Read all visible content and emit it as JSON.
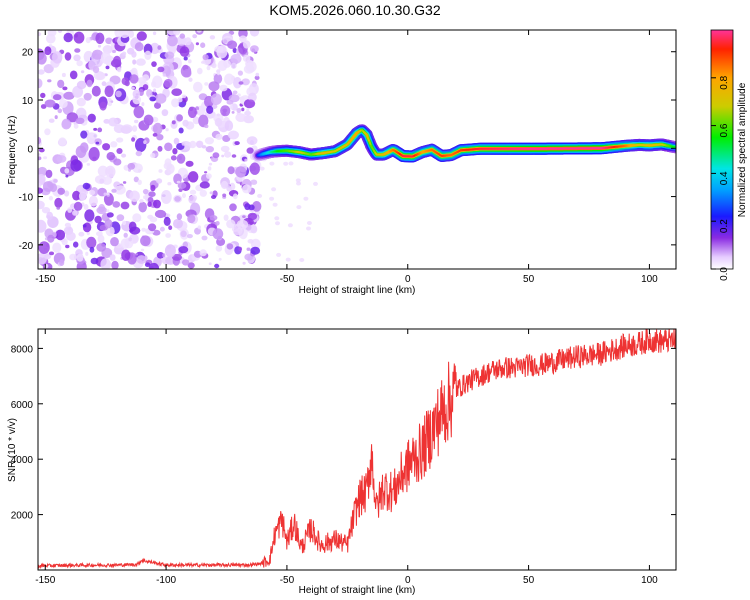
{
  "title": "KOM5.2026.060.10.30.G32",
  "chart_data": [
    {
      "type": "heatmap",
      "panel": "spectrogram",
      "xlabel": "Height of straight line (km)",
      "ylabel": "Frequency (Hz)",
      "xlim": [
        -153,
        111
      ],
      "ylim": [
        -25,
        24.5
      ],
      "xticks": [
        -150,
        -100,
        -50,
        0,
        50,
        100
      ],
      "yticks": [
        -20,
        -10,
        0,
        10,
        20
      ],
      "noise_region_x": [
        -153,
        -62
      ],
      "ridge": {
        "x": [
          -62,
          -60,
          -57,
          -54,
          -50,
          -45,
          -40,
          -35,
          -30,
          -25,
          -21,
          -19,
          -17,
          -15,
          -13,
          -10,
          -6,
          -2,
          2,
          6,
          10,
          14,
          18,
          22,
          30,
          50,
          80,
          90,
          96,
          100,
          105,
          111
        ],
        "freq": [
          -1.5,
          -1.2,
          -0.8,
          -0.6,
          -0.5,
          -0.8,
          -1.3,
          -1.0,
          -0.6,
          0.8,
          3.2,
          3.8,
          2.8,
          0.3,
          -1.3,
          -1.3,
          -0.3,
          -1.6,
          -1.7,
          -0.8,
          -0.3,
          -1.6,
          -1.4,
          -0.4,
          -0.1,
          -0.1,
          0.0,
          0.5,
          0.7,
          0.6,
          0.8,
          0.2
        ],
        "amp": [
          0.25,
          0.35,
          0.45,
          0.55,
          0.6,
          0.7,
          0.6,
          0.75,
          0.7,
          0.75,
          0.8,
          0.65,
          0.75,
          0.6,
          0.7,
          0.75,
          0.85,
          0.95,
          0.95,
          0.8,
          0.85,
          0.9,
          0.85,
          0.9,
          0.95,
          1.0,
          1.0,
          0.85,
          0.7,
          0.75,
          0.7,
          0.5
        ]
      },
      "colorbar": {
        "label": "Normalized spectral amplitude",
        "ticks": [
          0.0,
          0.2,
          0.4,
          0.6,
          0.8
        ],
        "range": [
          0,
          1
        ]
      }
    },
    {
      "type": "line",
      "panel": "snr",
      "xlabel": "Height of straight line (km)",
      "ylabel": "SNR (10 * v/v)",
      "xlim": [
        -153,
        111
      ],
      "ylim": [
        0,
        8700
      ],
      "xticks": [
        -150,
        -100,
        -50,
        0,
        50,
        100
      ],
      "yticks": [
        2000,
        4000,
        6000,
        8000
      ],
      "color": "#ee3333",
      "series": [
        {
          "name": "SNR",
          "x": [
            -153,
            -140,
            -120,
            -112,
            -110,
            -100,
            -80,
            -65,
            -60,
            -57,
            -55,
            -52,
            -50,
            -47,
            -44,
            -40,
            -36,
            -30,
            -25,
            -22,
            -20,
            -17,
            -15,
            -13,
            -10,
            -6,
            -2,
            2,
            6,
            10,
            15,
            20,
            25,
            30,
            35,
            40,
            45,
            50,
            55,
            60,
            70,
            80,
            90,
            95,
            100,
            105,
            111
          ],
          "y": [
            150,
            170,
            180,
            200,
            350,
            180,
            180,
            180,
            250,
            400,
            1300,
            1800,
            1000,
            1700,
            800,
            1500,
            900,
            1100,
            900,
            2000,
            2600,
            2800,
            4200,
            2200,
            3000,
            2800,
            3500,
            4000,
            4300,
            5000,
            5800,
            6500,
            6800,
            7000,
            7200,
            7300,
            7300,
            7400,
            7400,
            7500,
            7700,
            7800,
            8100,
            8150,
            8300,
            8250,
            8300
          ]
        }
      ]
    }
  ]
}
